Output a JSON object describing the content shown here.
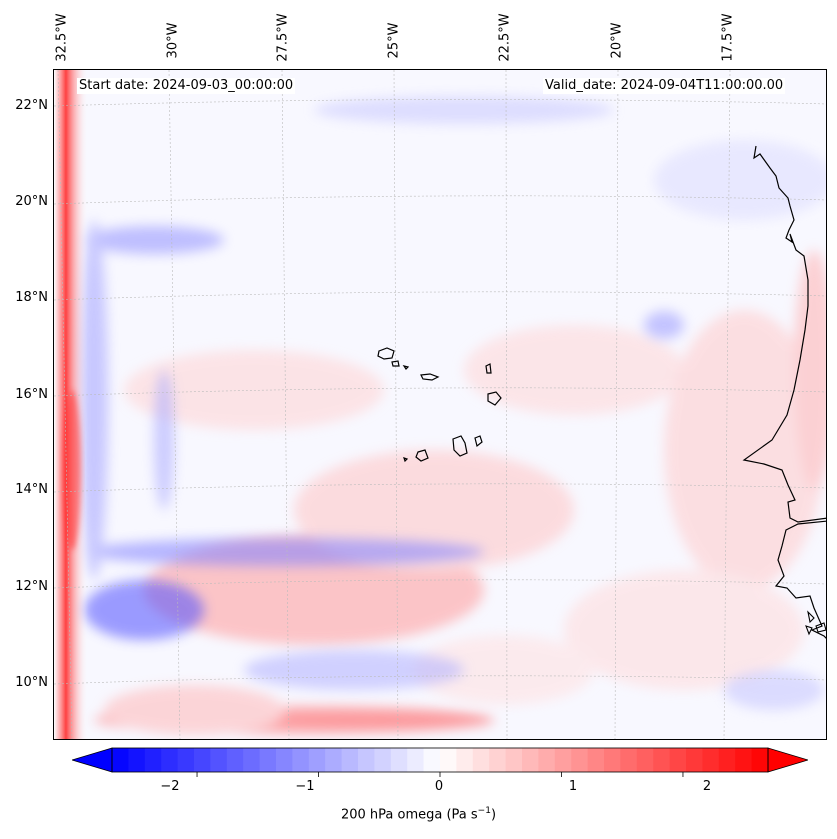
{
  "map": {
    "start_date": "Start date: 2024-09-03_00:00:00",
    "valid_date": "Valid_date: 2024-09-04T11:00:00.00",
    "field": "200 hPa omega",
    "longitude_labels": [
      "32.5°W",
      "30°W",
      "27.5°W",
      "25°W",
      "22.5°W",
      "20°W",
      "17.5°W"
    ],
    "latitude_labels": [
      "22°N",
      "20°N",
      "18°N",
      "16°N",
      "14°N",
      "12°N",
      "10°N"
    ],
    "colors": {
      "negative": "#0000ff",
      "neutral": "#ffffff",
      "positive": "#ff0000",
      "coast": "#000000"
    }
  },
  "colorbar": {
    "ticks": [
      "−2",
      "−1",
      "0",
      "1",
      "2"
    ],
    "tick_values": [
      -2,
      -1,
      0,
      1,
      2
    ],
    "range": [
      -2.7,
      2.7
    ],
    "label_text": "200 hPa omega (Pa s",
    "label_unit_exp": "−1",
    "label_close": ")"
  }
}
